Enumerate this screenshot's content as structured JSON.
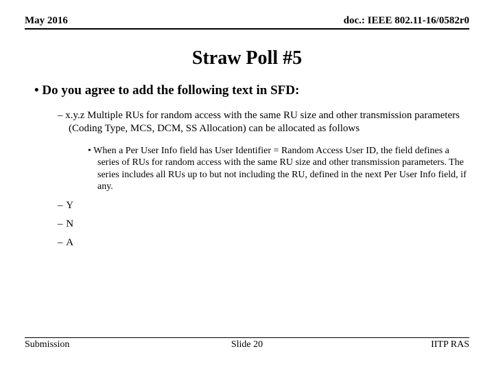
{
  "header": {
    "left": "May 2016",
    "right": "doc.: IEEE 802.11-16/0582r0"
  },
  "title": "Straw Poll #5",
  "mainBullet": "Do you agree to add the following text in SFD:",
  "dashText": "x.y.z Multiple RUs for random access with the same RU size and other transmission parameters (Coding Type, MCS, DCM, SS Allocation) can be allocated as follows",
  "dotText": "When a Per User Info field has User Identifier = Random Access User ID, the field defines a series of RUs for random access with the same RU size and other transmission parameters. The series includes all RUs up to but not including the RU, defined in the next Per User Info field, if any.",
  "yn": [
    "Y",
    "N",
    "A"
  ],
  "footer": {
    "left": "Submission",
    "center": "Slide 20",
    "right": "IITP RAS"
  }
}
